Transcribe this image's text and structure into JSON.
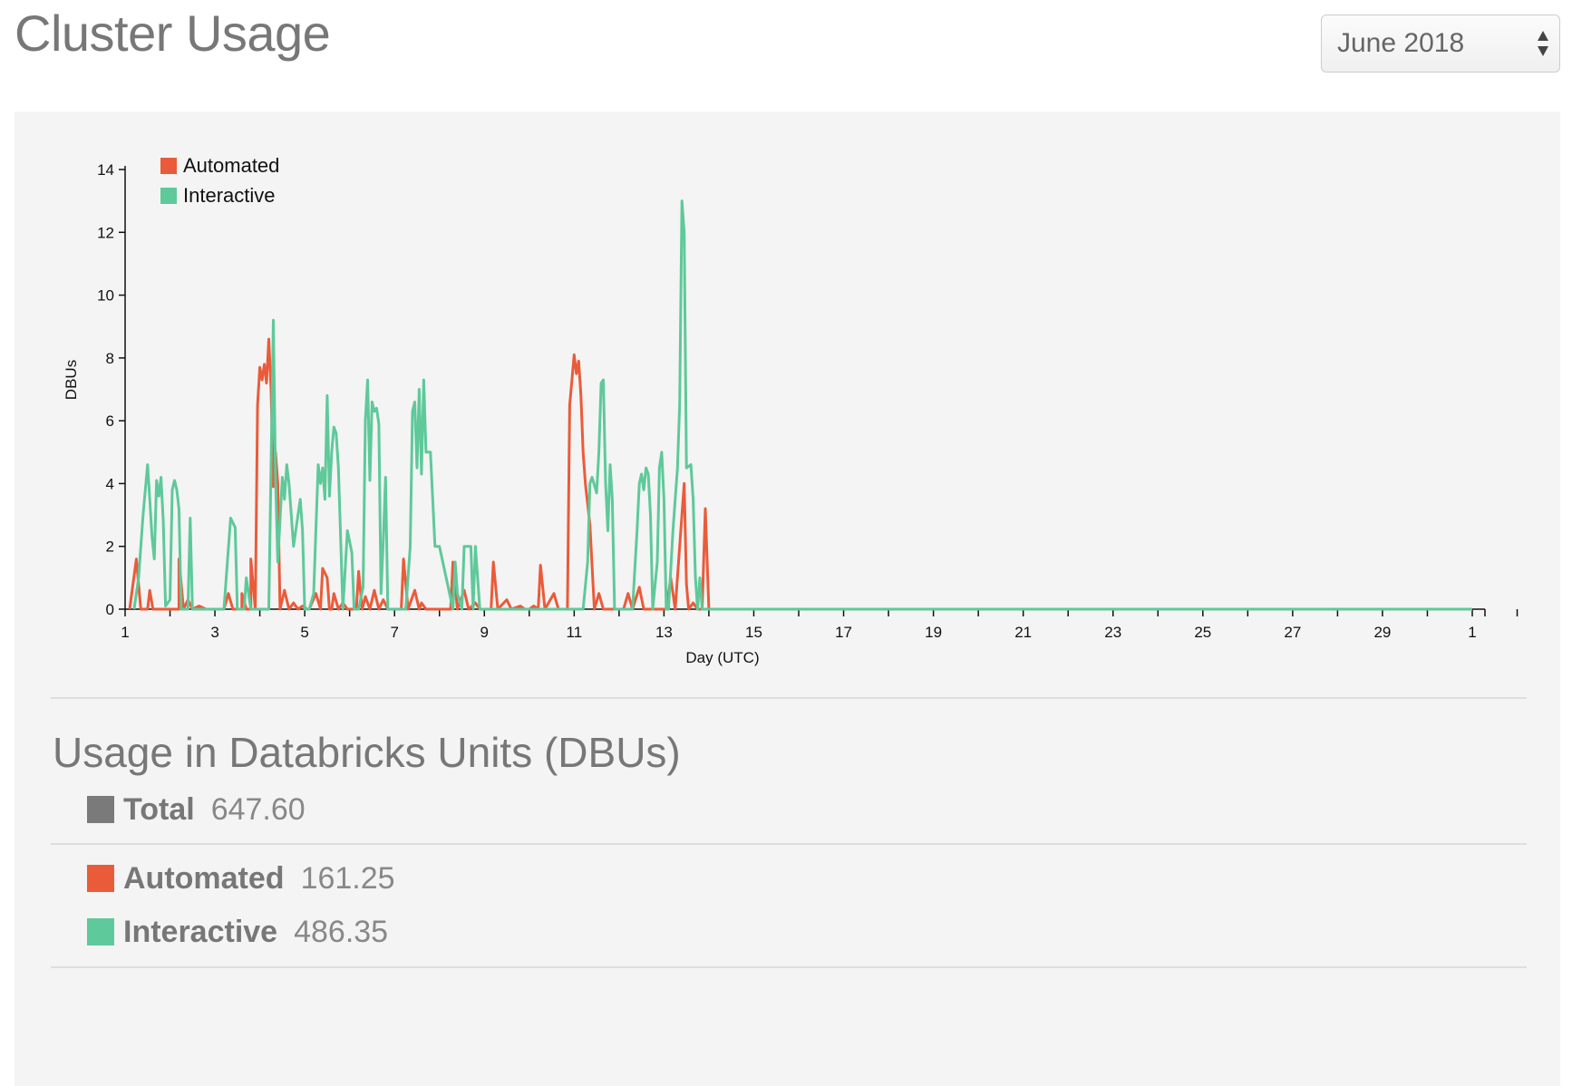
{
  "header": {
    "title": "Cluster Usage",
    "month_select": {
      "selected": "June 2018"
    }
  },
  "colors": {
    "automated": "#ea5b3a",
    "interactive": "#5ec99a",
    "total": "#7a7a7a"
  },
  "chart_data": {
    "type": "line",
    "xlabel": "Day (UTC)",
    "ylabel": "DBUs",
    "xlim": [
      1,
      31
    ],
    "ylim": [
      0,
      14
    ],
    "x_ticks": [
      "1",
      "3",
      "5",
      "7",
      "9",
      "11",
      "13",
      "15",
      "17",
      "19",
      "21",
      "23",
      "25",
      "27",
      "29",
      "1"
    ],
    "y_ticks": [
      "0",
      "2",
      "4",
      "6",
      "8",
      "10",
      "12",
      "14"
    ],
    "legend": {
      "placement": "top-left"
    },
    "series": [
      {
        "name": "Automated",
        "color": "#ea5b3a",
        "points": [
          [
            1.1,
            0
          ],
          [
            1.25,
            1.6
          ],
          [
            1.35,
            0
          ],
          [
            1.5,
            0
          ],
          [
            1.55,
            0.6
          ],
          [
            1.62,
            0
          ],
          [
            2.2,
            0
          ],
          [
            2.2,
            1.6
          ],
          [
            2.3,
            0
          ],
          [
            2.4,
            0.3
          ],
          [
            2.5,
            0
          ],
          [
            2.65,
            0.1
          ],
          [
            2.8,
            0
          ],
          [
            3.2,
            0
          ],
          [
            3.3,
            0.5
          ],
          [
            3.4,
            0
          ],
          [
            3.6,
            0
          ],
          [
            3.6,
            0.5
          ],
          [
            3.7,
            0
          ],
          [
            3.8,
            0
          ],
          [
            3.8,
            1.6
          ],
          [
            3.9,
            0
          ],
          [
            3.95,
            6.5
          ],
          [
            4.0,
            7.7
          ],
          [
            4.05,
            7.3
          ],
          [
            4.1,
            7.8
          ],
          [
            4.15,
            7.2
          ],
          [
            4.2,
            8.6
          ],
          [
            4.25,
            7.0
          ],
          [
            4.3,
            3.9
          ],
          [
            4.35,
            5.0
          ],
          [
            4.4,
            4.0
          ],
          [
            4.45,
            0
          ],
          [
            4.55,
            0.6
          ],
          [
            4.65,
            0
          ],
          [
            4.75,
            0.2
          ],
          [
            4.85,
            0
          ],
          [
            4.95,
            0.1
          ],
          [
            5.05,
            0
          ],
          [
            5.1,
            0
          ],
          [
            5.25,
            0.5
          ],
          [
            5.35,
            0
          ],
          [
            5.4,
            1.3
          ],
          [
            5.5,
            1.0
          ],
          [
            5.55,
            0
          ],
          [
            5.6,
            0
          ],
          [
            5.65,
            0.5
          ],
          [
            5.75,
            0
          ],
          [
            5.85,
            0.2
          ],
          [
            5.95,
            0
          ],
          [
            6.15,
            0
          ],
          [
            6.2,
            1.2
          ],
          [
            6.28,
            0
          ],
          [
            6.35,
            0.4
          ],
          [
            6.45,
            0
          ],
          [
            6.55,
            0.6
          ],
          [
            6.65,
            0
          ],
          [
            6.75,
            0.3
          ],
          [
            6.85,
            0
          ],
          [
            7.15,
            0
          ],
          [
            7.2,
            1.6
          ],
          [
            7.3,
            0
          ],
          [
            7.45,
            0.6
          ],
          [
            7.55,
            0
          ],
          [
            7.6,
            0.2
          ],
          [
            7.7,
            0
          ],
          [
            8.25,
            0
          ],
          [
            8.3,
            1.5
          ],
          [
            8.4,
            0
          ],
          [
            8.55,
            0.6
          ],
          [
            8.65,
            0
          ],
          [
            8.8,
            0.2
          ],
          [
            8.9,
            0
          ],
          [
            9.15,
            0
          ],
          [
            9.2,
            1.5
          ],
          [
            9.3,
            0
          ],
          [
            9.5,
            0.3
          ],
          [
            9.6,
            0
          ],
          [
            9.8,
            0.1
          ],
          [
            9.9,
            0
          ],
          [
            10.0,
            0
          ],
          [
            10.1,
            0.1
          ],
          [
            10.2,
            0
          ],
          [
            10.25,
            1.4
          ],
          [
            10.35,
            0
          ],
          [
            10.55,
            0.5
          ],
          [
            10.65,
            0
          ],
          [
            10.85,
            0
          ],
          [
            10.9,
            6.5
          ],
          [
            10.95,
            7.3
          ],
          [
            11.0,
            8.1
          ],
          [
            11.05,
            7.5
          ],
          [
            11.1,
            7.9
          ],
          [
            11.15,
            6.8
          ],
          [
            11.2,
            5.0
          ],
          [
            11.25,
            4.0
          ],
          [
            11.35,
            2.7
          ],
          [
            11.45,
            0
          ],
          [
            11.55,
            0.5
          ],
          [
            11.65,
            0
          ],
          [
            12.1,
            0
          ],
          [
            12.2,
            0.5
          ],
          [
            12.3,
            0
          ],
          [
            12.45,
            0.7
          ],
          [
            12.55,
            0
          ],
          [
            13.05,
            0
          ],
          [
            13.15,
            1.0
          ],
          [
            13.25,
            0
          ],
          [
            13.35,
            2.0
          ],
          [
            13.45,
            4.0
          ],
          [
            13.5,
            0.8
          ],
          [
            13.55,
            0
          ],
          [
            13.65,
            0.2
          ],
          [
            13.75,
            0
          ],
          [
            13.85,
            0
          ],
          [
            13.92,
            3.2
          ],
          [
            14.0,
            0
          ]
        ]
      },
      {
        "name": "Interactive",
        "color": "#5ec99a",
        "points": [
          [
            1.2,
            0
          ],
          [
            1.3,
            1.0
          ],
          [
            1.4,
            3.0
          ],
          [
            1.5,
            4.6
          ],
          [
            1.55,
            3.5
          ],
          [
            1.6,
            2.3
          ],
          [
            1.65,
            1.6
          ],
          [
            1.7,
            4.1
          ],
          [
            1.75,
            3.6
          ],
          [
            1.8,
            4.2
          ],
          [
            1.85,
            2.8
          ],
          [
            1.9,
            0.1
          ],
          [
            2.0,
            0.3
          ],
          [
            2.05,
            3.8
          ],
          [
            2.1,
            4.1
          ],
          [
            2.15,
            3.8
          ],
          [
            2.2,
            3.2
          ],
          [
            2.25,
            0
          ],
          [
            2.35,
            0
          ],
          [
            2.4,
            0
          ],
          [
            2.45,
            2.9
          ],
          [
            2.5,
            0
          ],
          [
            3.2,
            0
          ],
          [
            3.35,
            2.9
          ],
          [
            3.45,
            2.6
          ],
          [
            3.5,
            0
          ],
          [
            3.65,
            0
          ],
          [
            3.7,
            1.0
          ],
          [
            3.8,
            0
          ],
          [
            4.2,
            0
          ],
          [
            4.3,
            9.2
          ],
          [
            4.35,
            4.2
          ],
          [
            4.4,
            1.5
          ],
          [
            4.5,
            4.2
          ],
          [
            4.55,
            3.5
          ],
          [
            4.6,
            4.6
          ],
          [
            4.65,
            4.0
          ],
          [
            4.7,
            3.0
          ],
          [
            4.75,
            2.0
          ],
          [
            4.8,
            2.5
          ],
          [
            4.9,
            3.5
          ],
          [
            4.95,
            2.5
          ],
          [
            5.0,
            0
          ],
          [
            5.1,
            0
          ],
          [
            5.2,
            0.5
          ],
          [
            5.3,
            4.6
          ],
          [
            5.35,
            4.0
          ],
          [
            5.4,
            4.5
          ],
          [
            5.45,
            3.5
          ],
          [
            5.5,
            6.8
          ],
          [
            5.55,
            3.6
          ],
          [
            5.6,
            5.0
          ],
          [
            5.65,
            5.8
          ],
          [
            5.7,
            5.6
          ],
          [
            5.75,
            4.5
          ],
          [
            5.85,
            0
          ],
          [
            5.95,
            2.5
          ],
          [
            6.05,
            1.8
          ],
          [
            6.1,
            0
          ],
          [
            6.2,
            0
          ],
          [
            6.3,
            0.7
          ],
          [
            6.35,
            6.0
          ],
          [
            6.4,
            7.3
          ],
          [
            6.45,
            4.1
          ],
          [
            6.5,
            6.6
          ],
          [
            6.55,
            6.3
          ],
          [
            6.6,
            6.4
          ],
          [
            6.65,
            5.9
          ],
          [
            6.7,
            0.5
          ],
          [
            6.75,
            2.2
          ],
          [
            6.8,
            4.2
          ],
          [
            6.85,
            0
          ],
          [
            7.25,
            0
          ],
          [
            7.35,
            2.0
          ],
          [
            7.4,
            6.3
          ],
          [
            7.45,
            6.6
          ],
          [
            7.5,
            4.5
          ],
          [
            7.55,
            7.0
          ],
          [
            7.6,
            4.3
          ],
          [
            7.65,
            7.3
          ],
          [
            7.7,
            5.0
          ],
          [
            7.8,
            5.0
          ],
          [
            7.85,
            3.5
          ],
          [
            7.9,
            2.0
          ],
          [
            8.0,
            2.0
          ],
          [
            8.3,
            0
          ],
          [
            8.35,
            1.5
          ],
          [
            8.4,
            0.5
          ],
          [
            8.5,
            0
          ],
          [
            8.55,
            2.0
          ],
          [
            8.7,
            2.0
          ],
          [
            8.75,
            0
          ],
          [
            8.8,
            2.0
          ],
          [
            8.9,
            0
          ],
          [
            8.95,
            0
          ],
          [
            11.0,
            0
          ],
          [
            11.2,
            0
          ],
          [
            11.3,
            1.5
          ],
          [
            11.35,
            4.0
          ],
          [
            11.4,
            4.2
          ],
          [
            11.5,
            3.7
          ],
          [
            11.55,
            5.0
          ],
          [
            11.6,
            7.2
          ],
          [
            11.65,
            7.3
          ],
          [
            11.7,
            4.0
          ],
          [
            11.75,
            2.5
          ],
          [
            11.8,
            4.6
          ],
          [
            11.85,
            3.5
          ],
          [
            11.9,
            0
          ],
          [
            12.3,
            0
          ],
          [
            12.4,
            2.5
          ],
          [
            12.45,
            4.0
          ],
          [
            12.5,
            4.3
          ],
          [
            12.55,
            3.8
          ],
          [
            12.6,
            4.5
          ],
          [
            12.65,
            4.3
          ],
          [
            12.7,
            3.0
          ],
          [
            12.75,
            0
          ],
          [
            12.85,
            1.5
          ],
          [
            12.9,
            4.5
          ],
          [
            12.95,
            5.0
          ],
          [
            13.0,
            3.5
          ],
          [
            13.05,
            0
          ],
          [
            13.1,
            0
          ],
          [
            13.2,
            2.5
          ],
          [
            13.3,
            4.5
          ],
          [
            13.35,
            6.5
          ],
          [
            13.4,
            13.0
          ],
          [
            13.45,
            12.0
          ],
          [
            13.5,
            4.5
          ],
          [
            13.6,
            4.6
          ],
          [
            13.65,
            3.5
          ],
          [
            13.7,
            1.0
          ],
          [
            13.75,
            0
          ],
          [
            13.8,
            1.0
          ],
          [
            13.85,
            0
          ],
          [
            14.0,
            0
          ],
          [
            31.0,
            0
          ]
        ]
      }
    ]
  },
  "usage": {
    "title": "Usage in Databricks Units (DBUs)",
    "total": {
      "label": "Total",
      "value": "647.60"
    },
    "automated": {
      "label": "Automated",
      "value": "161.25"
    },
    "interactive": {
      "label": "Interactive",
      "value": "486.35"
    }
  }
}
